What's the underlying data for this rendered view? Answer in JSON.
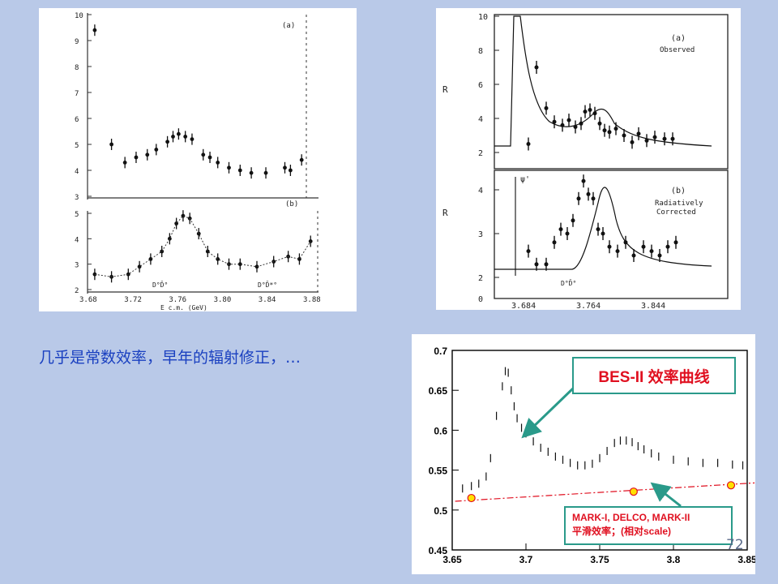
{
  "caption": "几乎是常数效率，早年的辐射修正，…",
  "page_number": "72",
  "callouts": {
    "bes": "BES-II 效率曲线",
    "mark_line1": "MARK-I, DELCO, MARK-II",
    "mark_line2": "平滑效率；(相对scale)"
  },
  "chart_left": {
    "top_label": "(a)",
    "bottom_label": "(b)",
    "y_ticks_top": [
      "10",
      "9",
      "8",
      "7",
      "6",
      "5",
      "4",
      "3"
    ],
    "y_ticks_bottom": [
      "5",
      "4",
      "3",
      "2"
    ],
    "x_ticks": [
      "3.68",
      "3.72",
      "3.76",
      "3.80",
      "3.84",
      "3.88"
    ],
    "xlabel": "E c.m. (GeV)",
    "annot1": "D°D̄°",
    "annot2": "D°D̄*°",
    "chart_data": {
      "type": "scatter",
      "top": [
        [
          3.685,
          9.4
        ],
        [
          3.7,
          5.0
        ],
        [
          3.712,
          4.3
        ],
        [
          3.722,
          4.5
        ],
        [
          3.732,
          4.6
        ],
        [
          3.74,
          4.8
        ],
        [
          3.75,
          5.1
        ],
        [
          3.755,
          5.3
        ],
        [
          3.76,
          5.4
        ],
        [
          3.766,
          5.3
        ],
        [
          3.772,
          5.2
        ],
        [
          3.782,
          4.6
        ],
        [
          3.788,
          4.5
        ],
        [
          3.795,
          4.3
        ],
        [
          3.805,
          4.1
        ],
        [
          3.815,
          4.0
        ],
        [
          3.825,
          3.9
        ],
        [
          3.838,
          3.9
        ],
        [
          3.855,
          4.1
        ],
        [
          3.86,
          4.0
        ],
        [
          3.87,
          4.4
        ]
      ],
      "bottom": [
        [
          3.685,
          2.6
        ],
        [
          3.7,
          2.5
        ],
        [
          3.715,
          2.6
        ],
        [
          3.725,
          2.9
        ],
        [
          3.735,
          3.2
        ],
        [
          3.745,
          3.5
        ],
        [
          3.752,
          4.0
        ],
        [
          3.758,
          4.6
        ],
        [
          3.764,
          4.9
        ],
        [
          3.77,
          4.8
        ],
        [
          3.778,
          4.2
        ],
        [
          3.786,
          3.5
        ],
        [
          3.795,
          3.2
        ],
        [
          3.805,
          3.0
        ],
        [
          3.815,
          3.0
        ],
        [
          3.83,
          2.9
        ],
        [
          3.845,
          3.1
        ],
        [
          3.858,
          3.3
        ],
        [
          3.868,
          3.2
        ],
        [
          3.878,
          3.9
        ]
      ]
    }
  },
  "chart_right": {
    "ylabel": "R",
    "panel_a_label": "(a)",
    "panel_a_text": "Observed",
    "panel_b_label": "(b)",
    "panel_b_text1": "Radiatively",
    "panel_b_text2": "Corrected",
    "psi_label": "ψ'",
    "dd_label": "D°D̄°",
    "y_ticks_top": [
      "10",
      "8",
      "6",
      "4",
      "2"
    ],
    "y_ticks_bottom": [
      "4",
      "3",
      "2",
      "0"
    ],
    "x_ticks": [
      "3.684",
      "3.764",
      "3.844"
    ],
    "chart_data": {
      "type": "scatter",
      "observed": [
        [
          3.69,
          2.5
        ],
        [
          3.7,
          7.0
        ],
        [
          3.712,
          4.6
        ],
        [
          3.722,
          3.8
        ],
        [
          3.732,
          3.6
        ],
        [
          3.74,
          3.9
        ],
        [
          3.748,
          3.5
        ],
        [
          3.755,
          3.7
        ],
        [
          3.76,
          4.4
        ],
        [
          3.766,
          4.5
        ],
        [
          3.772,
          4.3
        ],
        [
          3.778,
          3.7
        ],
        [
          3.784,
          3.3
        ],
        [
          3.79,
          3.2
        ],
        [
          3.798,
          3.4
        ],
        [
          3.808,
          3.0
        ],
        [
          3.818,
          2.6
        ],
        [
          3.826,
          3.1
        ],
        [
          3.836,
          2.7
        ],
        [
          3.846,
          2.9
        ],
        [
          3.858,
          2.8
        ],
        [
          3.868,
          2.8
        ]
      ],
      "corrected": [
        [
          3.69,
          2.6
        ],
        [
          3.7,
          2.3
        ],
        [
          3.712,
          2.3
        ],
        [
          3.722,
          2.8
        ],
        [
          3.73,
          3.1
        ],
        [
          3.738,
          3.0
        ],
        [
          3.745,
          3.3
        ],
        [
          3.752,
          3.8
        ],
        [
          3.758,
          4.2
        ],
        [
          3.764,
          3.9
        ],
        [
          3.77,
          3.8
        ],
        [
          3.776,
          3.1
        ],
        [
          3.782,
          3.0
        ],
        [
          3.79,
          2.7
        ],
        [
          3.8,
          2.6
        ],
        [
          3.81,
          2.8
        ],
        [
          3.82,
          2.5
        ],
        [
          3.832,
          2.7
        ],
        [
          3.842,
          2.6
        ],
        [
          3.852,
          2.5
        ],
        [
          3.862,
          2.7
        ],
        [
          3.872,
          2.8
        ]
      ]
    }
  },
  "chart_bottom": {
    "chart_data": {
      "type": "scatter",
      "y_ticks": [
        "0.7",
        "0.65",
        "0.6",
        "0.55",
        "0.5",
        "0.45"
      ],
      "x_ticks": [
        "3.65",
        "3.7",
        "3.75",
        "3.8",
        "3.85"
      ],
      "xlim": [
        3.65,
        3.85
      ],
      "ylim": [
        0.45,
        0.7
      ],
      "series": [
        {
          "values": [
            [
              3.657,
              0.527
            ],
            [
              3.663,
              0.53
            ],
            [
              3.668,
              0.533
            ],
            [
              3.673,
              0.542
            ],
            [
              3.676,
              0.565
            ],
            [
              3.68,
              0.618
            ],
            [
              3.684,
              0.655
            ],
            [
              3.686,
              0.674
            ],
            [
              3.688,
              0.672
            ],
            [
              3.69,
              0.65
            ],
            [
              3.692,
              0.63
            ],
            [
              3.694,
              0.615
            ],
            [
              3.697,
              0.603
            ],
            [
              3.7,
              0.596
            ],
            [
              3.705,
              0.586
            ],
            [
              3.71,
              0.578
            ],
            [
              3.715,
              0.573
            ],
            [
              3.72,
              0.567
            ],
            [
              3.725,
              0.563
            ],
            [
              3.73,
              0.559
            ],
            [
              3.735,
              0.556
            ],
            [
              3.74,
              0.556
            ],
            [
              3.745,
              0.558
            ],
            [
              3.75,
              0.565
            ],
            [
              3.755,
              0.574
            ],
            [
              3.76,
              0.584
            ],
            [
              3.764,
              0.587
            ],
            [
              3.768,
              0.587
            ],
            [
              3.772,
              0.585
            ],
            [
              3.776,
              0.58
            ],
            [
              3.78,
              0.576
            ],
            [
              3.785,
              0.571
            ],
            [
              3.79,
              0.567
            ],
            [
              3.8,
              0.563
            ],
            [
              3.81,
              0.561
            ],
            [
              3.82,
              0.559
            ],
            [
              3.83,
              0.559
            ],
            [
              3.84,
              0.557
            ],
            [
              3.847,
              0.556
            ]
          ]
        },
        {
          "values": [
            [
              3.663,
              0.515
            ],
            [
              3.773,
              0.523
            ],
            [
              3.839,
              0.531
            ]
          ]
        }
      ],
      "fit_line": [
        [
          3.652,
          0.511
        ],
        [
          3.855,
          0.534
        ]
      ]
    }
  },
  "colors": {
    "background": "#b9c9e8",
    "accent_red": "#e01020",
    "callout_border": "#2a9a8a",
    "caption": "#1a40c0",
    "marker": "#ffe000"
  }
}
